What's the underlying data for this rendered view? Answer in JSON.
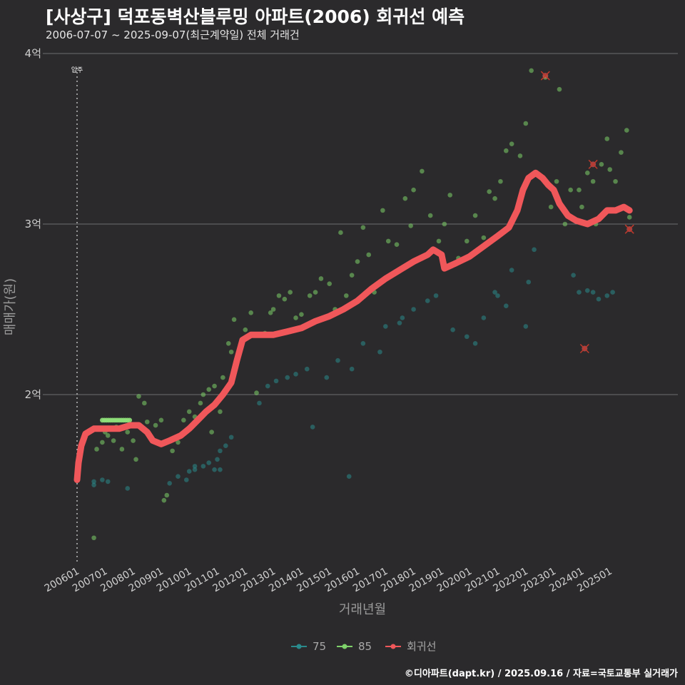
{
  "header": {
    "title": "[사상구] 덕포동벽산블루밍 아파트(2006) 회귀선 예측",
    "subtitle": "2006-07-07 ~ 2025-09-07(최근계약일) 전체 거래건"
  },
  "caption": "©디아파트(dapt.kr) / 2025.09.16 / 자료=국토교통부 실거래가",
  "colors": {
    "background": "#2b2a2c",
    "series_75": "#2a8a8c",
    "series_85": "#7ed26a",
    "regression": "#f0575a",
    "grid": "#6e6d70"
  },
  "chart_data": {
    "type": "scatter",
    "title": "[사상구] 덕포동벽산블루밍 아파트(2006) 회귀선 예측",
    "subtitle": "2006-07-07 ~ 2025-09-07(최근계약일) 전체 거래건",
    "xlabel": "거래년월",
    "ylabel": "매매가(원)",
    "xlim": [
      2006.0,
      2026.0
    ],
    "ylim": [
      1.1,
      4.1
    ],
    "y_unit": "억",
    "x_ticks": [
      "200601",
      "200701",
      "200801",
      "200901",
      "201001",
      "201101",
      "201201",
      "201301",
      "201401",
      "201501",
      "201601",
      "201701",
      "201801",
      "201901",
      "202001",
      "202101",
      "202201",
      "202301",
      "202401",
      "202501"
    ],
    "y_ticks": [
      "2억",
      "3억",
      "4억"
    ],
    "grid": true,
    "legend_position": "bottom",
    "legend": [
      "75",
      "85",
      "회귀선"
    ],
    "annotation": {
      "label": "입주",
      "x": 2006.0
    },
    "series": [
      {
        "name": "75",
        "points": [
          [
            2006.6,
            1.47
          ],
          [
            2006.6,
            1.49
          ],
          [
            2006.9,
            1.5
          ],
          [
            2007.1,
            1.49
          ],
          [
            2007.8,
            1.45
          ],
          [
            2009.3,
            1.48
          ],
          [
            2009.6,
            1.52
          ],
          [
            2009.9,
            1.5
          ],
          [
            2010.0,
            1.55
          ],
          [
            2010.2,
            1.56
          ],
          [
            2010.2,
            1.58
          ],
          [
            2010.5,
            1.58
          ],
          [
            2010.7,
            1.6
          ],
          [
            2010.9,
            1.56
          ],
          [
            2011.0,
            1.62
          ],
          [
            2011.1,
            1.56
          ],
          [
            2011.1,
            1.67
          ],
          [
            2011.3,
            1.7
          ],
          [
            2011.5,
            1.75
          ],
          [
            2012.5,
            1.95
          ],
          [
            2012.8,
            2.05
          ],
          [
            2013.1,
            2.08
          ],
          [
            2013.5,
            2.1
          ],
          [
            2013.8,
            2.12
          ],
          [
            2014.2,
            2.15
          ],
          [
            2014.4,
            1.81
          ],
          [
            2014.9,
            2.1
          ],
          [
            2015.3,
            2.2
          ],
          [
            2015.7,
            1.52
          ],
          [
            2015.8,
            2.15
          ],
          [
            2016.2,
            2.3
          ],
          [
            2016.8,
            2.25
          ],
          [
            2017.0,
            2.4
          ],
          [
            2017.5,
            2.42
          ],
          [
            2017.6,
            2.45
          ],
          [
            2018.0,
            2.5
          ],
          [
            2018.5,
            2.55
          ],
          [
            2018.8,
            2.58
          ],
          [
            2019.4,
            2.38
          ],
          [
            2019.9,
            2.34
          ],
          [
            2020.2,
            2.3
          ],
          [
            2020.5,
            2.45
          ],
          [
            2020.9,
            2.6
          ],
          [
            2021.0,
            2.58
          ],
          [
            2021.3,
            2.52
          ],
          [
            2021.5,
            2.73
          ],
          [
            2022.0,
            2.4
          ],
          [
            2022.1,
            2.66
          ],
          [
            2022.3,
            2.85
          ],
          [
            2023.7,
            2.7
          ],
          [
            2023.9,
            2.6
          ],
          [
            2024.2,
            2.61
          ],
          [
            2024.4,
            2.6
          ],
          [
            2024.6,
            2.56
          ],
          [
            2024.9,
            2.58
          ],
          [
            2025.1,
            2.6
          ]
        ]
      },
      {
        "name": "85",
        "points": [
          [
            2006.6,
            1.16
          ],
          [
            2006.7,
            1.68
          ],
          [
            2006.9,
            1.72
          ],
          [
            2007.0,
            1.78
          ],
          [
            2007.1,
            1.76
          ],
          [
            2007.3,
            1.73
          ],
          [
            2007.4,
            1.81
          ],
          [
            2007.6,
            1.68
          ],
          [
            2007.8,
            1.78
          ],
          [
            2008.0,
            1.73
          ],
          [
            2008.1,
            1.62
          ],
          [
            2008.2,
            1.99
          ],
          [
            2008.4,
            1.95
          ],
          [
            2008.5,
            1.84
          ],
          [
            2008.8,
            1.82
          ],
          [
            2009.0,
            1.85
          ],
          [
            2009.1,
            1.38
          ],
          [
            2009.2,
            1.41
          ],
          [
            2009.4,
            1.67
          ],
          [
            2009.6,
            1.72
          ],
          [
            2009.8,
            1.85
          ],
          [
            2010.0,
            1.9
          ],
          [
            2010.2,
            1.87
          ],
          [
            2010.4,
            1.95
          ],
          [
            2010.5,
            2.0
          ],
          [
            2010.7,
            2.03
          ],
          [
            2010.8,
            1.78
          ],
          [
            2010.9,
            2.05
          ],
          [
            2011.1,
            1.9
          ],
          [
            2011.2,
            2.1
          ],
          [
            2011.4,
            2.3
          ],
          [
            2011.5,
            2.25
          ],
          [
            2011.6,
            2.44
          ],
          [
            2011.8,
            2.25
          ],
          [
            2012.0,
            2.38
          ],
          [
            2012.2,
            2.48
          ],
          [
            2012.4,
            2.01
          ],
          [
            2012.7,
            2.36
          ],
          [
            2012.9,
            2.48
          ],
          [
            2013.0,
            2.5
          ],
          [
            2013.2,
            2.58
          ],
          [
            2013.4,
            2.56
          ],
          [
            2013.6,
            2.6
          ],
          [
            2013.8,
            2.45
          ],
          [
            2014.0,
            2.47
          ],
          [
            2014.3,
            2.58
          ],
          [
            2014.5,
            2.6
          ],
          [
            2014.7,
            2.68
          ],
          [
            2015.0,
            2.65
          ],
          [
            2015.2,
            2.5
          ],
          [
            2015.4,
            2.95
          ],
          [
            2015.6,
            2.58
          ],
          [
            2015.8,
            2.7
          ],
          [
            2016.0,
            2.78
          ],
          [
            2016.2,
            2.98
          ],
          [
            2016.4,
            2.82
          ],
          [
            2016.6,
            2.6
          ],
          [
            2016.9,
            3.08
          ],
          [
            2017.1,
            2.9
          ],
          [
            2017.4,
            2.88
          ],
          [
            2017.7,
            3.15
          ],
          [
            2017.9,
            2.99
          ],
          [
            2018.0,
            3.2
          ],
          [
            2018.3,
            3.31
          ],
          [
            2018.6,
            3.05
          ],
          [
            2018.9,
            2.9
          ],
          [
            2019.1,
            3.0
          ],
          [
            2019.3,
            3.17
          ],
          [
            2019.6,
            2.8
          ],
          [
            2019.9,
            2.9
          ],
          [
            2020.2,
            3.05
          ],
          [
            2020.5,
            2.92
          ],
          [
            2020.7,
            3.19
          ],
          [
            2020.9,
            3.15
          ],
          [
            2021.1,
            3.25
          ],
          [
            2021.3,
            3.43
          ],
          [
            2021.5,
            3.47
          ],
          [
            2021.8,
            3.4
          ],
          [
            2022.0,
            3.59
          ],
          [
            2022.2,
            3.9
          ],
          [
            2022.4,
            3.3
          ],
          [
            2022.7,
            3.86
          ],
          [
            2022.9,
            3.1
          ],
          [
            2023.1,
            3.25
          ],
          [
            2023.2,
            3.79
          ],
          [
            2023.4,
            3.0
          ],
          [
            2023.6,
            3.2
          ],
          [
            2023.9,
            3.2
          ],
          [
            2024.0,
            3.1
          ],
          [
            2024.2,
            3.3
          ],
          [
            2024.4,
            3.25
          ],
          [
            2024.5,
            3.0
          ],
          [
            2024.7,
            3.35
          ],
          [
            2024.9,
            3.5
          ],
          [
            2025.0,
            3.32
          ],
          [
            2025.2,
            3.25
          ],
          [
            2025.4,
            3.42
          ],
          [
            2025.6,
            3.55
          ],
          [
            2025.7,
            3.04
          ]
        ]
      },
      {
        "name": "회귀선",
        "outliers": [
          [
            2022.7,
            3.87
          ],
          [
            2024.1,
            2.27
          ],
          [
            2024.4,
            3.35
          ],
          [
            2025.7,
            2.97
          ]
        ]
      }
    ],
    "regression_line": [
      [
        2006.0,
        1.5
      ],
      [
        2006.05,
        1.6
      ],
      [
        2006.15,
        1.7
      ],
      [
        2006.3,
        1.77
      ],
      [
        2006.6,
        1.8
      ],
      [
        2007.0,
        1.8
      ],
      [
        2007.5,
        1.8
      ],
      [
        2007.9,
        1.82
      ],
      [
        2008.2,
        1.82
      ],
      [
        2008.5,
        1.78
      ],
      [
        2008.7,
        1.73
      ],
      [
        2009.0,
        1.71
      ],
      [
        2009.3,
        1.73
      ],
      [
        2009.7,
        1.76
      ],
      [
        2010.0,
        1.8
      ],
      [
        2010.3,
        1.85
      ],
      [
        2010.6,
        1.9
      ],
      [
        2010.9,
        1.94
      ],
      [
        2011.2,
        2.0
      ],
      [
        2011.5,
        2.07
      ],
      [
        2011.7,
        2.2
      ],
      [
        2011.9,
        2.32
      ],
      [
        2012.2,
        2.35
      ],
      [
        2012.6,
        2.35
      ],
      [
        2013.0,
        2.35
      ],
      [
        2013.5,
        2.37
      ],
      [
        2014.0,
        2.39
      ],
      [
        2014.5,
        2.43
      ],
      [
        2015.0,
        2.46
      ],
      [
        2015.5,
        2.5
      ],
      [
        2016.0,
        2.55
      ],
      [
        2016.5,
        2.62
      ],
      [
        2017.0,
        2.68
      ],
      [
        2017.5,
        2.73
      ],
      [
        2018.0,
        2.78
      ],
      [
        2018.5,
        2.82
      ],
      [
        2018.7,
        2.85
      ],
      [
        2019.0,
        2.82
      ],
      [
        2019.1,
        2.74
      ],
      [
        2019.5,
        2.77
      ],
      [
        2020.0,
        2.81
      ],
      [
        2020.5,
        2.87
      ],
      [
        2021.0,
        2.93
      ],
      [
        2021.4,
        2.98
      ],
      [
        2021.7,
        3.08
      ],
      [
        2021.9,
        3.2
      ],
      [
        2022.1,
        3.27
      ],
      [
        2022.35,
        3.3
      ],
      [
        2022.6,
        3.27
      ],
      [
        2022.8,
        3.23
      ],
      [
        2023.0,
        3.2
      ],
      [
        2023.2,
        3.12
      ],
      [
        2023.5,
        3.05
      ],
      [
        2023.8,
        3.02
      ],
      [
        2024.2,
        3.0
      ],
      [
        2024.6,
        3.03
      ],
      [
        2024.9,
        3.08
      ],
      [
        2025.2,
        3.08
      ],
      [
        2025.5,
        3.1
      ],
      [
        2025.7,
        3.08
      ]
    ]
  }
}
